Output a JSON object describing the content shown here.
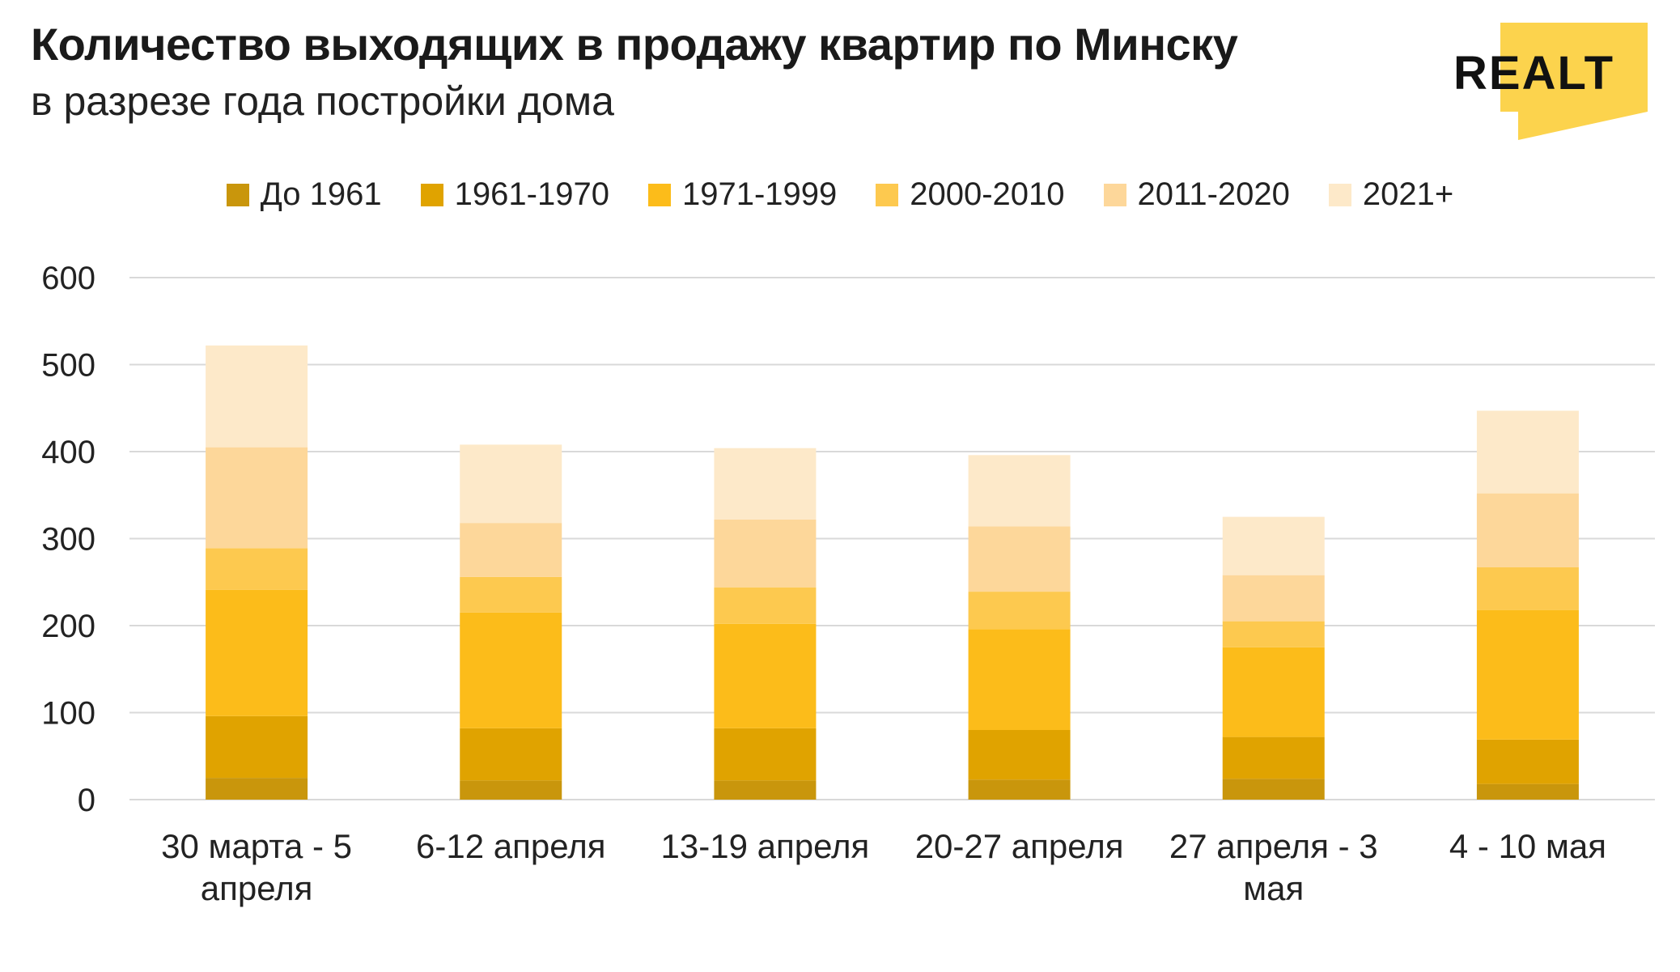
{
  "header": {
    "title": "Количество выходящих в продажу квартир по Минску",
    "subtitle": "в разрезе года постройки дома"
  },
  "logo": {
    "text": "REALT",
    "color": "#fcd34d"
  },
  "chart_data": {
    "type": "bar",
    "stacked": true,
    "title": "Количество выходящих в продажу квартир по Минску",
    "subtitle": "в разрезе года постройки дома",
    "categories": [
      [
        "30 марта - 5",
        "апреля"
      ],
      [
        "6-12 апреля"
      ],
      [
        "13-19 апреля"
      ],
      [
        "20-27 апреля"
      ],
      [
        "27 апреля - 3",
        "мая"
      ],
      [
        "4 - 10 мая"
      ]
    ],
    "series": [
      {
        "name": "До 1961",
        "color": "#c9960c",
        "values": [
          25,
          22,
          22,
          23,
          24,
          18
        ]
      },
      {
        "name": "1961-1970",
        "color": "#e0a300",
        "values": [
          71,
          60,
          60,
          57,
          48,
          51
        ]
      },
      {
        "name": "1971-1999",
        "color": "#fcbc1a",
        "values": [
          145,
          133,
          120,
          116,
          103,
          149
        ]
      },
      {
        "name": "2000-2010",
        "color": "#fdc94f",
        "values": [
          48,
          41,
          42,
          43,
          30,
          49
        ]
      },
      {
        "name": "2011-2020",
        "color": "#fdd79a",
        "values": [
          116,
          62,
          78,
          75,
          53,
          85
        ]
      },
      {
        "name": "2021+",
        "color": "#fde9c9",
        "values": [
          117,
          90,
          82,
          82,
          67,
          95
        ]
      }
    ],
    "ylim": [
      0,
      600
    ],
    "yticks": [
      0,
      100,
      200,
      300,
      400,
      500,
      600
    ],
    "grid": true,
    "legend_position": "top-center",
    "xlabel": "",
    "ylabel": ""
  }
}
